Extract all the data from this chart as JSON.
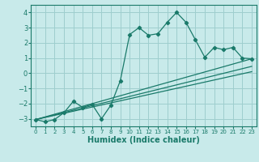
{
  "title": "",
  "xlabel": "Humidex (Indice chaleur)",
  "ylabel": "",
  "background_color": "#c8eaea",
  "grid_color": "#9ecece",
  "line_color": "#1a7a6a",
  "xlim": [
    -0.5,
    23.5
  ],
  "ylim": [
    -3.5,
    4.5
  ],
  "xticks": [
    0,
    1,
    2,
    3,
    4,
    5,
    6,
    7,
    8,
    9,
    10,
    11,
    12,
    13,
    14,
    15,
    16,
    17,
    18,
    19,
    20,
    21,
    22,
    23
  ],
  "yticks": [
    -3,
    -2,
    -1,
    0,
    1,
    2,
    3,
    4
  ],
  "main_line": {
    "x": [
      0,
      1,
      2,
      3,
      4,
      5,
      6,
      7,
      8,
      9,
      10,
      11,
      12,
      13,
      14,
      15,
      16,
      17,
      18,
      19,
      20,
      21,
      22,
      23
    ],
    "y": [
      -3.05,
      -3.2,
      -3.05,
      -2.6,
      -1.85,
      -2.25,
      -2.05,
      -3.0,
      -2.1,
      -0.5,
      2.55,
      3.0,
      2.5,
      2.6,
      3.35,
      4.0,
      3.35,
      2.2,
      1.05,
      1.7,
      1.55,
      1.7,
      1.0,
      0.95
    ]
  },
  "line2": {
    "x": [
      0,
      23
    ],
    "y": [
      -3.05,
      0.95
    ]
  },
  "line3": {
    "x": [
      0,
      23
    ],
    "y": [
      -3.05,
      0.45
    ]
  },
  "line4": {
    "x": [
      0,
      23
    ],
    "y": [
      -3.05,
      0.1
    ]
  }
}
